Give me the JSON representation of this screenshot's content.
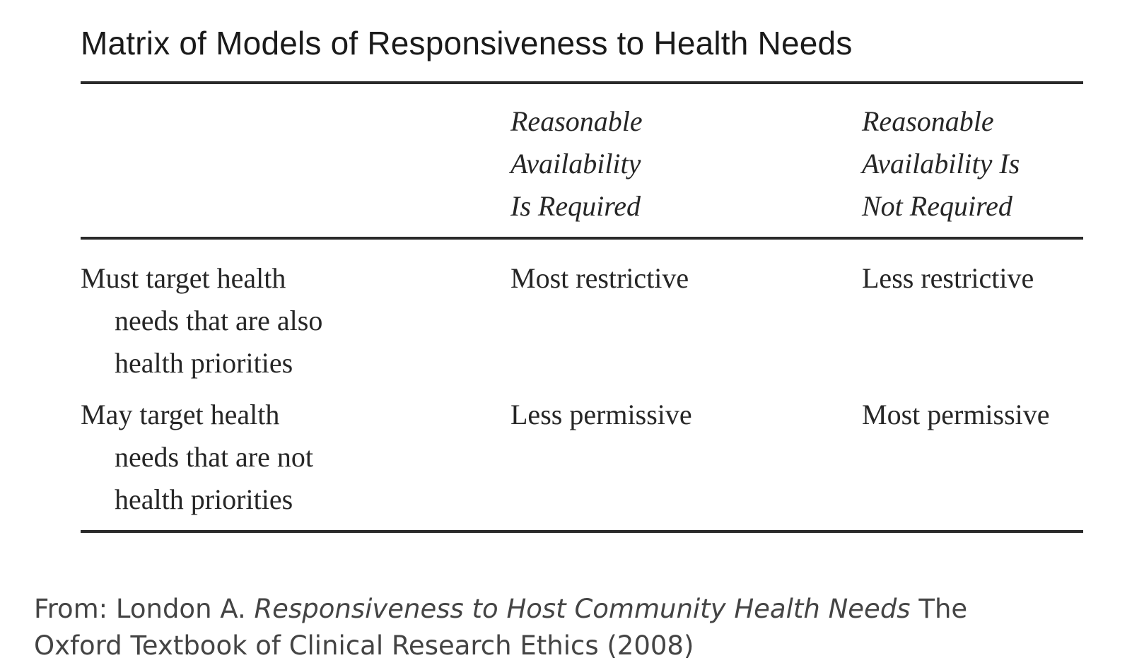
{
  "table": {
    "title": "Matrix of Models of Responsiveness to Health Needs",
    "columns": [
      {
        "lines": [
          "Reasonable",
          "Availability",
          "Is Required"
        ]
      },
      {
        "lines": [
          "Reasonable",
          "Availability Is",
          "Not Required"
        ]
      }
    ],
    "rows": [
      {
        "label_lines": [
          "Must target health",
          "needs that are also",
          "health priorities"
        ],
        "cells": [
          "Most restrictive",
          "Less restrictive"
        ]
      },
      {
        "label_lines": [
          "May target health",
          "needs that are not",
          "health priorities"
        ],
        "cells": [
          "Less permissive",
          "Most permissive"
        ]
      }
    ]
  },
  "source": {
    "prefix": "From: London A. ",
    "work_title": "Responsiveness to Host Community Health Needs",
    "suffix_line1": " The",
    "line2": "Oxford Textbook of Clinical Research Ethics (2008)"
  }
}
